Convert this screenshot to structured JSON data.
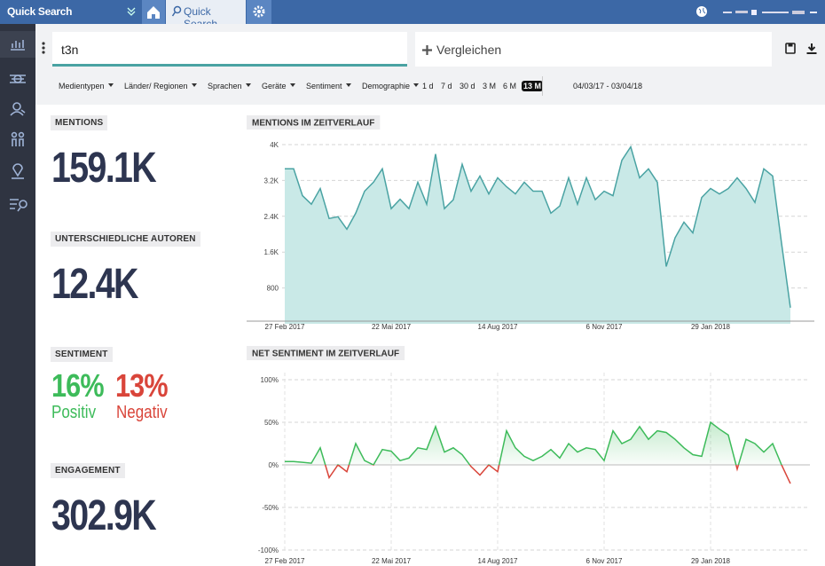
{
  "topbar": {
    "app_title": "Quick Search",
    "tab": "Quick Search"
  },
  "search": {
    "query": "t3n",
    "compare": "Vergleichen"
  },
  "filters": [
    "Medientypen",
    "Länder/ Regionen",
    "Sprachen",
    "Geräte",
    "Sentiment",
    "Demographie"
  ],
  "ranges": [
    {
      "label": "1 d",
      "active": false
    },
    {
      "label": "7 d",
      "active": false
    },
    {
      "label": "30 d",
      "active": false
    },
    {
      "label": "3 M",
      "active": false
    },
    {
      "label": "6 M",
      "active": false
    },
    {
      "label": "13 M",
      "active": true
    }
  ],
  "date_range": "04/03/17 - 03/04/18",
  "kpis": {
    "mentions": {
      "label": "MENTIONS",
      "value": "159.1K"
    },
    "authors": {
      "label": "UNTERSCHIEDLICHE AUTOREN",
      "value": "12.4K"
    },
    "sentiment": {
      "label": "SENTIMENT",
      "positive": {
        "value": "16%",
        "label": "Positiv"
      },
      "negative": {
        "value": "13%",
        "label": "Negativ"
      }
    },
    "engagement": {
      "label": "ENGAGEMENT",
      "value": "302.9K"
    }
  },
  "chart_data": [
    {
      "type": "area",
      "title": "MENTIONS IM ZEITVERLAUF",
      "color": "#4aa3a3",
      "fill": "#c9e9e7",
      "grid": true,
      "categories": [
        "27 Feb 2017",
        null,
        null,
        null,
        null,
        null,
        null,
        null,
        null,
        null,
        null,
        null,
        "22 Mai 2017",
        null,
        null,
        null,
        null,
        null,
        null,
        null,
        null,
        null,
        null,
        null,
        "14 Aug 2017",
        null,
        null,
        null,
        null,
        null,
        null,
        null,
        null,
        null,
        null,
        null,
        "6 Nov 2017",
        null,
        null,
        null,
        null,
        null,
        null,
        null,
        null,
        null,
        null,
        null,
        "29 Jan 2018",
        null,
        null,
        null,
        null,
        null,
        null,
        null,
        null,
        null
      ],
      "values": [
        3460,
        3460,
        2860,
        2670,
        3020,
        2350,
        2390,
        2110,
        2470,
        2960,
        3160,
        3460,
        2570,
        2780,
        2570,
        3160,
        2670,
        3790,
        2570,
        2770,
        3560,
        2960,
        3300,
        2900,
        3260,
        3060,
        2900,
        3160,
        2960,
        2960,
        2470,
        2630,
        3260,
        2670,
        3260,
        2770,
        2960,
        2860,
        3650,
        3950,
        3260,
        3460,
        3160,
        1280,
        1920,
        2270,
        2030,
        2820,
        3020,
        2900,
        3020,
        3260,
        3020,
        2710,
        3460,
        3300,
        1800,
        360
      ],
      "ylim": [
        0,
        4000
      ],
      "yticks": [
        800,
        {
          "value": 1600,
          "label": "1.6K"
        },
        {
          "value": 2400,
          "label": "2.4K"
        },
        {
          "value": 3200,
          "label": "3.2K"
        },
        {
          "value": 4000,
          "label": "4K"
        }
      ]
    },
    {
      "type": "line",
      "title": "NET SENTIMENT IM ZEITVERLAUF",
      "color": "#3dbb5a",
      "negative_color": "#d9453a",
      "fill": "#3dbb5a",
      "grid": true,
      "categories": [
        "27 Feb 2017",
        null,
        null,
        null,
        null,
        null,
        null,
        null,
        null,
        null,
        null,
        null,
        "22 Mai 2017",
        null,
        null,
        null,
        null,
        null,
        null,
        null,
        null,
        null,
        null,
        null,
        "14 Aug 2017",
        null,
        null,
        null,
        null,
        null,
        null,
        null,
        null,
        null,
        null,
        null,
        "6 Nov 2017",
        null,
        null,
        null,
        null,
        null,
        null,
        null,
        null,
        null,
        null,
        null,
        "29 Jan 2018",
        null,
        null,
        null,
        null,
        null,
        null,
        null,
        null,
        null
      ],
      "values": [
        4,
        4,
        3,
        2,
        20,
        -15,
        0,
        -8,
        25,
        5,
        0,
        18,
        16,
        5,
        8,
        20,
        18,
        45,
        15,
        20,
        12,
        -2,
        -12,
        0,
        -8,
        40,
        20,
        10,
        5,
        10,
        18,
        8,
        25,
        15,
        20,
        18,
        5,
        40,
        25,
        30,
        45,
        30,
        40,
        38,
        30,
        20,
        12,
        10,
        50,
        42,
        35,
        -5,
        30,
        25,
        15,
        25,
        0,
        -22
      ],
      "ylim": [
        -100,
        100
      ],
      "yticks": [
        {
          "value": -100,
          "label": "-100%"
        },
        {
          "value": -50,
          "label": "-50%"
        },
        {
          "value": 0,
          "label": "0%"
        },
        {
          "value": 50,
          "label": "50%"
        },
        {
          "value": 100,
          "label": "100%"
        }
      ]
    }
  ]
}
